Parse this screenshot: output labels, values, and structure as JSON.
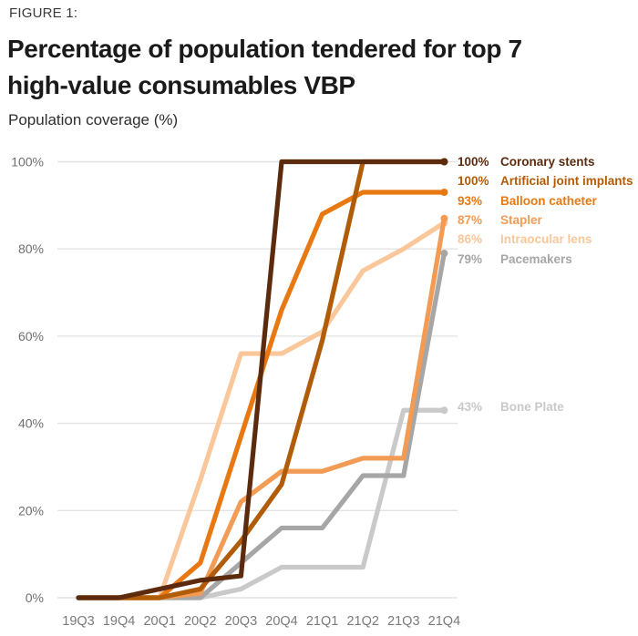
{
  "figure_label": "FIGURE 1:",
  "title": {
    "line1": "Percentage of population tendered for top 7",
    "line2": "high-value consumables VBP"
  },
  "axis_title": "Population coverage (%)",
  "chart_data": {
    "type": "line",
    "title": "Percentage of population tendered for top 7 high-value consumables VBP",
    "ylabel": "Population coverage (%)",
    "xlabel": "",
    "ylim": [
      0,
      100
    ],
    "grid": true,
    "legend_position": "right-of-line-ends",
    "gridline_color": "#E3E3E3",
    "ytick_label_color": "#6F6F6F",
    "xtick_label_color": "#7A7A7A",
    "categories": [
      "19Q3",
      "19Q4",
      "20Q1",
      "20Q2",
      "20Q3",
      "20Q4",
      "21Q1",
      "21Q2",
      "21Q3",
      "21Q4"
    ],
    "ytick_labels": [
      "0%",
      "20%",
      "40%",
      "60%",
      "80%",
      "100%"
    ],
    "series": [
      {
        "name": "Coronary stents",
        "end_label": "100%",
        "color": "#5C2B0E",
        "values": [
          0,
          0,
          2,
          4,
          5,
          100,
          100,
          100,
          100,
          100
        ]
      },
      {
        "name": "Artificial joint implants",
        "end_label": "100%",
        "color": "#B05C08",
        "values": [
          0,
          0,
          0,
          2,
          13,
          26,
          59,
          100,
          100,
          100
        ]
      },
      {
        "name": "Balloon catheter",
        "end_label": "93%",
        "color": "#E87912",
        "values": [
          0,
          0,
          0,
          8,
          37,
          66,
          88,
          93,
          93,
          93
        ]
      },
      {
        "name": "Stapler",
        "end_label": "87%",
        "color": "#F29B55",
        "values": [
          0,
          0,
          0,
          1,
          22,
          29,
          29,
          32,
          32,
          87
        ]
      },
      {
        "name": "Intraocular lens",
        "end_label": "86%",
        "color": "#FAC79B",
        "values": [
          0,
          0,
          0,
          27,
          56,
          56,
          61,
          75,
          80,
          86
        ]
      },
      {
        "name": "Pacemakers",
        "end_label": "79%",
        "color": "#A6A6A6",
        "values": [
          0,
          0,
          0,
          0,
          8,
          16,
          16,
          28,
          28,
          79
        ]
      },
      {
        "name": "Bone Plate",
        "end_label": "43%",
        "color": "#C9C9C9",
        "values": [
          0,
          0,
          0,
          0,
          2,
          7,
          7,
          7,
          43,
          43
        ]
      }
    ]
  }
}
